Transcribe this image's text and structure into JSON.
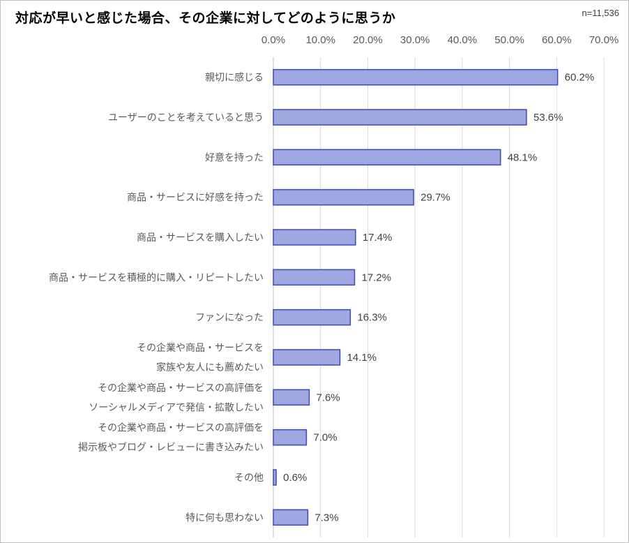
{
  "header": {
    "title": "対応が早いと感じた場合、その企業に対してどのように思うか",
    "sample_size": "n=11,536"
  },
  "chart_data": {
    "type": "bar",
    "orientation": "horizontal",
    "title": "対応が早いと感じた場合、その企業に対してどのように思うか",
    "xlim": [
      0,
      70
    ],
    "x_ticks": [
      "0.0%",
      "10.0%",
      "20.0%",
      "30.0%",
      "40.0%",
      "50.0%",
      "60.0%",
      "70.0%"
    ],
    "gridlines": true,
    "bar_color": "#9ea7e0",
    "bar_border": "#3b4ab5",
    "categories": [
      [
        "親切に感じる"
      ],
      [
        "ユーザーのことを考えていると思う"
      ],
      [
        "好意を持った"
      ],
      [
        "商品・サービスに好感を持った"
      ],
      [
        "商品・サービスを購入したい"
      ],
      [
        "商品・サービスを積極的に購入・リピートしたい"
      ],
      [
        "ファンになった"
      ],
      [
        "その企業や商品・サービスを",
        "家族や友人にも薦めたい"
      ],
      [
        "その企業や商品・サービスの高評価を",
        "ソーシャルメディアで発信・拡散したい"
      ],
      [
        "その企業や商品・サービスの高評価を",
        "掲示板やブログ・レビューに書き込みたい"
      ],
      [
        "その他"
      ],
      [
        "特に何も思わない"
      ]
    ],
    "values": [
      60.2,
      53.6,
      48.1,
      29.7,
      17.4,
      17.2,
      16.3,
      14.1,
      7.6,
      7.0,
      0.6,
      7.3
    ],
    "value_labels": [
      "60.2%",
      "53.6%",
      "48.1%",
      "29.7%",
      "17.4%",
      "17.2%",
      "16.3%",
      "14.1%",
      "7.6%",
      "7.0%",
      "0.6%",
      "7.3%"
    ]
  }
}
